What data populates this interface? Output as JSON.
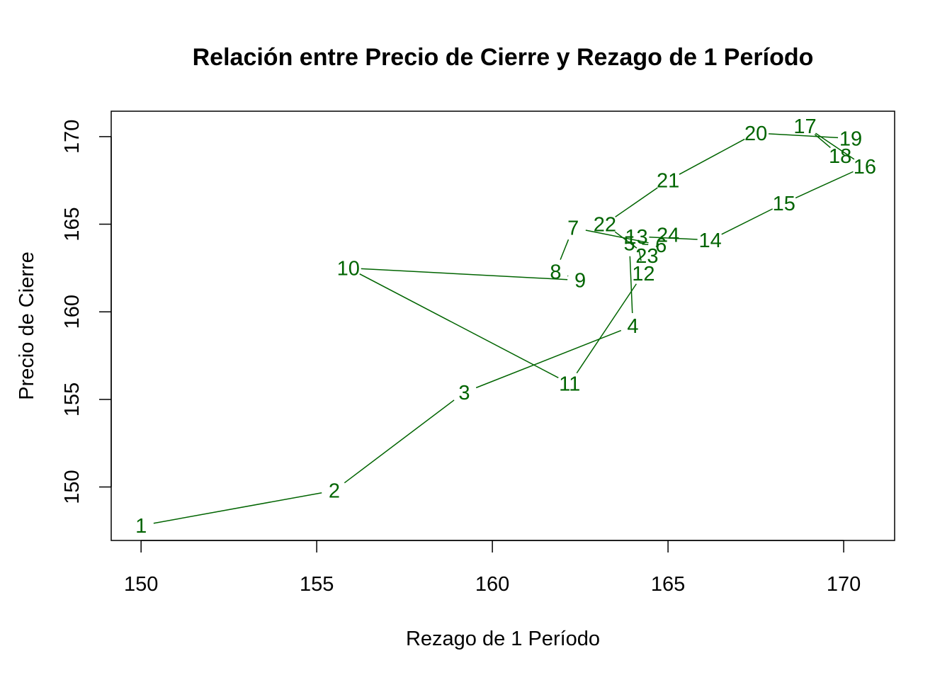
{
  "chart_data": {
    "type": "line",
    "title": "Relación entre Precio de Cierre y Rezago de 1 Período",
    "xlabel": "Rezago de 1 Período",
    "ylabel": "Precio de Cierre",
    "xlim": [
      149.15,
      171.45
    ],
    "ylim": [
      146.95,
      171.45
    ],
    "xticks": [
      150,
      155,
      160,
      165,
      170
    ],
    "yticks": [
      150,
      155,
      160,
      165,
      170
    ],
    "grid": false,
    "legend": "none",
    "point_style": "text labels with connecting line",
    "color": "#006400",
    "points": [
      {
        "label": "1",
        "x": 150.0,
        "y": 147.8
      },
      {
        "label": "2",
        "x": 155.5,
        "y": 149.8
      },
      {
        "label": "3",
        "x": 159.2,
        "y": 155.4
      },
      {
        "label": "4",
        "x": 164.0,
        "y": 159.2
      },
      {
        "label": "5",
        "x": 163.9,
        "y": 163.9
      },
      {
        "label": "6",
        "x": 164.8,
        "y": 163.8
      },
      {
        "label": "7",
        "x": 162.3,
        "y": 164.8
      },
      {
        "label": "8",
        "x": 161.8,
        "y": 162.3
      },
      {
        "label": "9",
        "x": 162.5,
        "y": 161.8
      },
      {
        "label": "10",
        "x": 155.9,
        "y": 162.5
      },
      {
        "label": "11",
        "x": 162.2,
        "y": 155.9
      },
      {
        "label": "12",
        "x": 164.3,
        "y": 162.2
      },
      {
        "label": "13",
        "x": 164.1,
        "y": 164.3
      },
      {
        "label": "14",
        "x": 166.2,
        "y": 164.1
      },
      {
        "label": "15",
        "x": 168.3,
        "y": 166.2
      },
      {
        "label": "16",
        "x": 170.6,
        "y": 168.3
      },
      {
        "label": "17",
        "x": 168.9,
        "y": 170.6
      },
      {
        "label": "18",
        "x": 169.9,
        "y": 168.9
      },
      {
        "label": "19",
        "x": 170.2,
        "y": 169.9
      },
      {
        "label": "20",
        "x": 167.5,
        "y": 170.2
      },
      {
        "label": "21",
        "x": 165.0,
        "y": 167.5
      },
      {
        "label": "22",
        "x": 163.2,
        "y": 165.0
      },
      {
        "label": "23",
        "x": 164.4,
        "y": 163.2
      },
      {
        "label": "24",
        "x": 165.0,
        "y": 164.4
      }
    ]
  }
}
